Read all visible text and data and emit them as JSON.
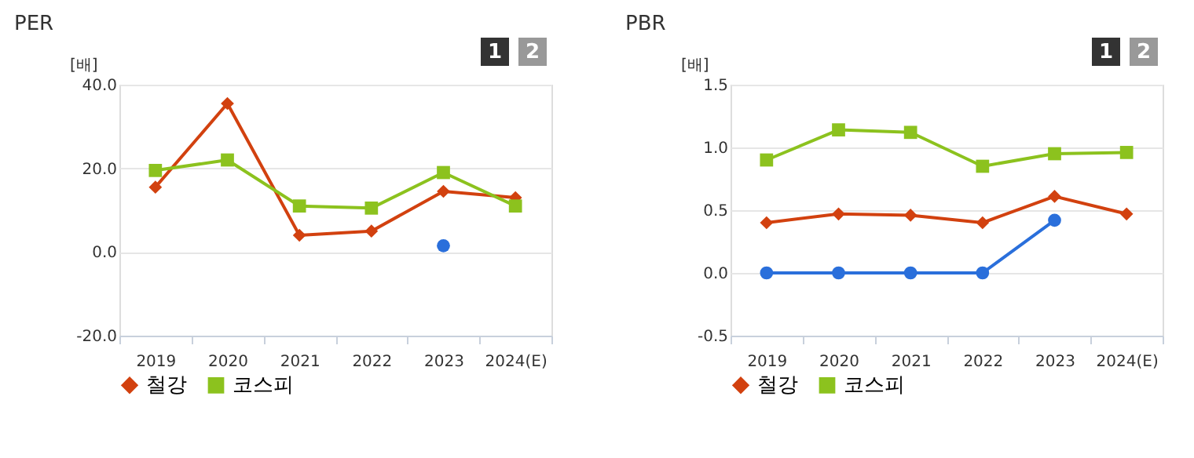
{
  "chart_data": [
    {
      "type": "line",
      "title": "PER",
      "ylabel": "[배]",
      "annotations": [
        "1",
        "2"
      ],
      "categories": [
        "2019",
        "2020",
        "2021",
        "2022",
        "2023",
        "2024(E)"
      ],
      "series": [
        {
          "color": "#2a6fdb",
          "marker": "circle",
          "values": [
            null,
            null,
            null,
            null,
            1.5,
            null
          ]
        },
        {
          "name": "철강",
          "color": "#d2410f",
          "marker": "diamond",
          "values": [
            15.5,
            35.5,
            4,
            5,
            14.5,
            13
          ]
        },
        {
          "name": "코스피",
          "color": "#8cc21e",
          "marker": "square",
          "values": [
            19.5,
            22,
            11,
            10.5,
            19,
            11
          ]
        }
      ],
      "ylim": [
        -20,
        40
      ],
      "yticks": [
        {
          "value": -20,
          "label": "-20.0"
        },
        {
          "value": 0,
          "label": "0.0"
        },
        {
          "value": 20,
          "label": "20.0"
        },
        {
          "value": 40,
          "label": "40.0"
        }
      ],
      "grid": "y",
      "legend": "bottom",
      "line_style": "solid"
    },
    {
      "type": "line",
      "title": "PBR",
      "ylabel": "[배]",
      "annotations": [
        "1",
        "2"
      ],
      "categories": [
        "2019",
        "2020",
        "2021",
        "2022",
        "2023",
        "2024(E)"
      ],
      "series": [
        {
          "color": "#2a6fdb",
          "marker": "circle",
          "values": [
            0,
            0,
            0,
            0,
            0.42,
            null
          ]
        },
        {
          "name": "철강",
          "color": "#d2410f",
          "marker": "diamond",
          "values": [
            0.4,
            0.47,
            0.46,
            0.4,
            0.61,
            0.47
          ]
        },
        {
          "name": "코스피",
          "color": "#8cc21e",
          "marker": "square",
          "values": [
            0.9,
            1.14,
            1.12,
            0.85,
            0.95,
            0.96
          ]
        }
      ],
      "ylim": [
        -0.5,
        1.5
      ],
      "yticks": [
        {
          "value": -0.5,
          "label": "-0.5"
        },
        {
          "value": 0,
          "label": "0.0"
        },
        {
          "value": 0.5,
          "label": "0.5"
        },
        {
          "value": 1,
          "label": "1.0"
        },
        {
          "value": 1.5,
          "label": "1.5"
        }
      ],
      "grid": "y",
      "legend": "bottom",
      "line_style": "solid"
    }
  ]
}
